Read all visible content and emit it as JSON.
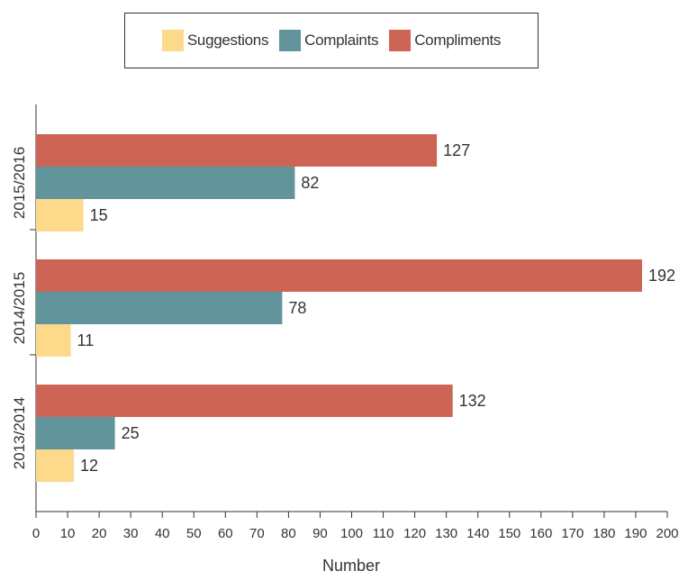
{
  "chart_data": {
    "type": "bar",
    "orientation": "horizontal",
    "categories": [
      "2015/2016",
      "2014/2015",
      "2013/2014"
    ],
    "series": [
      {
        "name": "Compliments",
        "values": [
          127,
          192,
          132
        ],
        "color": "#cc6556"
      },
      {
        "name": "Complaints",
        "values": [
          82,
          78,
          25
        ],
        "color": "#62949b"
      },
      {
        "name": "Suggestions",
        "values": [
          15,
          11,
          12
        ],
        "color": "#fdd98b"
      }
    ],
    "legend": {
      "position": "top-center",
      "order": [
        "Suggestions",
        "Complaints",
        "Compliments"
      ]
    },
    "xlabel": "Number",
    "ylabel": "",
    "xlim": [
      0,
      200
    ],
    "xticks": [
      0,
      10,
      20,
      30,
      40,
      50,
      60,
      70,
      80,
      90,
      100,
      110,
      120,
      130,
      140,
      150,
      160,
      170,
      180,
      190,
      200
    ],
    "grid": false,
    "data_labels": true
  }
}
